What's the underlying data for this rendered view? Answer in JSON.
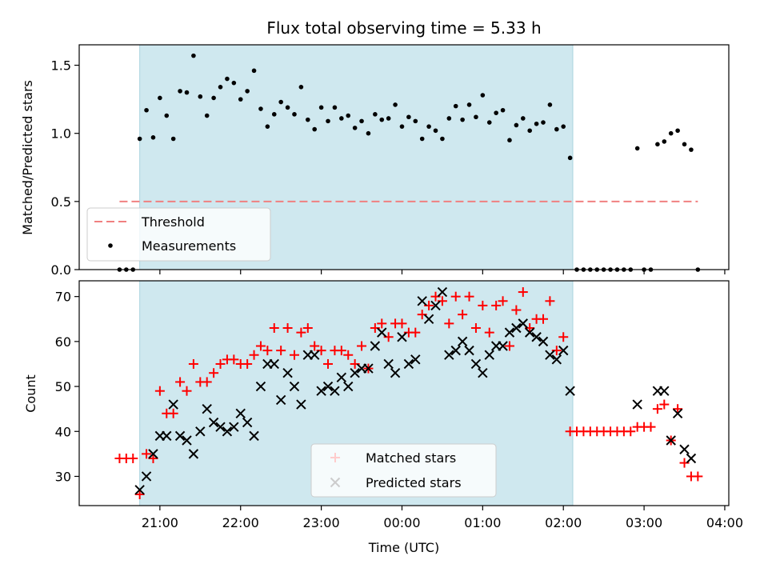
{
  "chart_data": [
    {
      "type": "scatter",
      "title": "Flux total observing time = 5.33 h",
      "xlabel": "",
      "ylabel": "Matched/Predicted stars",
      "ylim": [
        0,
        1.65
      ],
      "yticks": [
        "0.0",
        "0.5",
        "1.0",
        "1.5"
      ],
      "grid": false,
      "legend_position": "lower-left",
      "shaded_interval": [
        "20:45",
        "02:07"
      ],
      "shade_color": "#cfe8ef",
      "threshold": {
        "name": "Threshold",
        "value": 0.5,
        "x_range": [
          "20:30",
          "03:40"
        ],
        "color": "#f08080",
        "style": "dashed"
      },
      "series": [
        {
          "name": "Measurements",
          "marker": "dot",
          "color": "#000000",
          "points": [
            [
              "20:30",
              0
            ],
            [
              "20:35",
              0
            ],
            [
              "20:40",
              0
            ],
            [
              "20:45",
              0.96
            ],
            [
              "20:50",
              1.17
            ],
            [
              "20:55",
              0.97
            ],
            [
              "21:00",
              1.26
            ],
            [
              "21:05",
              1.13
            ],
            [
              "21:10",
              0.96
            ],
            [
              "21:15",
              1.31
            ],
            [
              "21:20",
              1.3
            ],
            [
              "21:25",
              1.57
            ],
            [
              "21:30",
              1.27
            ],
            [
              "21:35",
              1.13
            ],
            [
              "21:40",
              1.26
            ],
            [
              "21:45",
              1.34
            ],
            [
              "21:50",
              1.4
            ],
            [
              "21:55",
              1.37
            ],
            [
              "22:00",
              1.25
            ],
            [
              "22:05",
              1.31
            ],
            [
              "22:10",
              1.46
            ],
            [
              "22:15",
              1.18
            ],
            [
              "22:20",
              1.05
            ],
            [
              "22:25",
              1.14
            ],
            [
              "22:30",
              1.23
            ],
            [
              "22:35",
              1.19
            ],
            [
              "22:40",
              1.14
            ],
            [
              "22:45",
              1.34
            ],
            [
              "22:50",
              1.1
            ],
            [
              "22:55",
              1.03
            ],
            [
              "23:00",
              1.19
            ],
            [
              "23:05",
              1.09
            ],
            [
              "23:10",
              1.19
            ],
            [
              "23:15",
              1.11
            ],
            [
              "23:20",
              1.13
            ],
            [
              "23:25",
              1.04
            ],
            [
              "23:30",
              1.09
            ],
            [
              "23:35",
              1.0
            ],
            [
              "23:40",
              1.14
            ],
            [
              "23:45",
              1.1
            ],
            [
              "23:50",
              1.11
            ],
            [
              "23:55",
              1.21
            ],
            [
              "00:00",
              1.05
            ],
            [
              "00:05",
              1.12
            ],
            [
              "00:10",
              1.09
            ],
            [
              "00:15",
              0.96
            ],
            [
              "00:20",
              1.05
            ],
            [
              "00:25",
              1.02
            ],
            [
              "00:30",
              0.96
            ],
            [
              "00:35",
              1.11
            ],
            [
              "00:40",
              1.2
            ],
            [
              "00:45",
              1.1
            ],
            [
              "00:50",
              1.21
            ],
            [
              "00:55",
              1.12
            ],
            [
              "01:00",
              1.28
            ],
            [
              "01:05",
              1.08
            ],
            [
              "01:10",
              1.15
            ],
            [
              "01:15",
              1.17
            ],
            [
              "01:20",
              0.95
            ],
            [
              "01:25",
              1.06
            ],
            [
              "01:30",
              1.11
            ],
            [
              "01:35",
              1.02
            ],
            [
              "01:40",
              1.07
            ],
            [
              "01:45",
              1.08
            ],
            [
              "01:50",
              1.21
            ],
            [
              "01:55",
              1.03
            ],
            [
              "02:00",
              1.05
            ],
            [
              "02:05",
              0.82
            ],
            [
              "02:10",
              0
            ],
            [
              "02:15",
              0
            ],
            [
              "02:20",
              0
            ],
            [
              "02:25",
              0
            ],
            [
              "02:30",
              0
            ],
            [
              "02:35",
              0
            ],
            [
              "02:40",
              0
            ],
            [
              "02:45",
              0
            ],
            [
              "02:50",
              0
            ],
            [
              "02:55",
              0.89
            ],
            [
              "03:00",
              0
            ],
            [
              "03:05",
              0
            ],
            [
              "03:10",
              0.92
            ],
            [
              "03:15",
              0.94
            ],
            [
              "03:20",
              1.0
            ],
            [
              "03:25",
              1.02
            ],
            [
              "03:30",
              0.92
            ],
            [
              "03:35",
              0.88
            ],
            [
              "03:40",
              0
            ]
          ]
        }
      ]
    },
    {
      "type": "scatter",
      "title": "",
      "xlabel": "Time (UTC)",
      "ylabel": "Count",
      "ylim": [
        23.5,
        73.5
      ],
      "yticks": [
        "30",
        "40",
        "50",
        "60",
        "70"
      ],
      "xlim": [
        "20:00",
        "04:03"
      ],
      "xticks": [
        "21:00",
        "22:00",
        "23:00",
        "00:00",
        "01:00",
        "02:00",
        "03:00",
        "04:00"
      ],
      "grid": false,
      "legend_position": "lower-center",
      "shaded_interval": [
        "20:45",
        "02:07"
      ],
      "shade_color": "#cfe8ef",
      "series": [
        {
          "name": "Matched stars",
          "marker": "plus",
          "color": "#ff0000",
          "points": [
            [
              "20:30",
              34
            ],
            [
              "20:35",
              34
            ],
            [
              "20:40",
              34
            ],
            [
              "20:45",
              26
            ],
            [
              "20:50",
              35
            ],
            [
              "20:55",
              34
            ],
            [
              "21:00",
              49
            ],
            [
              "21:05",
              44
            ],
            [
              "21:10",
              44
            ],
            [
              "21:15",
              51
            ],
            [
              "21:20",
              49
            ],
            [
              "21:25",
              55
            ],
            [
              "21:30",
              51
            ],
            [
              "21:35",
              51
            ],
            [
              "21:40",
              53
            ],
            [
              "21:45",
              55
            ],
            [
              "21:50",
              56
            ],
            [
              "21:55",
              56
            ],
            [
              "22:00",
              55
            ],
            [
              "22:05",
              55
            ],
            [
              "22:10",
              57
            ],
            [
              "22:15",
              59
            ],
            [
              "22:20",
              58
            ],
            [
              "22:25",
              63
            ],
            [
              "22:30",
              58
            ],
            [
              "22:35",
              63
            ],
            [
              "22:40",
              57
            ],
            [
              "22:45",
              62
            ],
            [
              "22:50",
              63
            ],
            [
              "22:55",
              59
            ],
            [
              "23:00",
              58
            ],
            [
              "23:05",
              55
            ],
            [
              "23:10",
              58
            ],
            [
              "23:15",
              58
            ],
            [
              "23:20",
              57
            ],
            [
              "23:25",
              55
            ],
            [
              "23:30",
              59
            ],
            [
              "23:35",
              54
            ],
            [
              "23:40",
              63
            ],
            [
              "23:45",
              64
            ],
            [
              "23:50",
              61
            ],
            [
              "23:55",
              64
            ],
            [
              "00:00",
              64
            ],
            [
              "00:05",
              62
            ],
            [
              "00:10",
              62
            ],
            [
              "00:15",
              66
            ],
            [
              "00:20",
              68
            ],
            [
              "00:25",
              70
            ],
            [
              "00:30",
              69
            ],
            [
              "00:35",
              64
            ],
            [
              "00:40",
              70
            ],
            [
              "00:45",
              66
            ],
            [
              "00:50",
              70
            ],
            [
              "00:55",
              63
            ],
            [
              "01:00",
              68
            ],
            [
              "01:05",
              62
            ],
            [
              "01:10",
              68
            ],
            [
              "01:15",
              69
            ],
            [
              "01:20",
              59
            ],
            [
              "01:25",
              67
            ],
            [
              "01:30",
              71
            ],
            [
              "01:35",
              63
            ],
            [
              "01:40",
              65
            ],
            [
              "01:45",
              65
            ],
            [
              "01:50",
              69
            ],
            [
              "01:55",
              58
            ],
            [
              "02:00",
              61
            ],
            [
              "02:05",
              40
            ],
            [
              "02:10",
              40
            ],
            [
              "02:15",
              40
            ],
            [
              "02:20",
              40
            ],
            [
              "02:25",
              40
            ],
            [
              "02:30",
              40
            ],
            [
              "02:35",
              40
            ],
            [
              "02:40",
              40
            ],
            [
              "02:45",
              40
            ],
            [
              "02:50",
              40
            ],
            [
              "02:55",
              41
            ],
            [
              "03:00",
              41
            ],
            [
              "03:05",
              41
            ],
            [
              "03:10",
              45
            ],
            [
              "03:15",
              46
            ],
            [
              "03:20",
              38
            ],
            [
              "03:25",
              45
            ],
            [
              "03:30",
              33
            ],
            [
              "03:35",
              30
            ],
            [
              "03:40",
              30
            ]
          ]
        },
        {
          "name": "Predicted stars",
          "marker": "x",
          "color": "#000000",
          "points": [
            [
              "20:45",
              27
            ],
            [
              "20:50",
              30
            ],
            [
              "20:55",
              35
            ],
            [
              "21:00",
              39
            ],
            [
              "21:05",
              39
            ],
            [
              "21:10",
              46
            ],
            [
              "21:15",
              39
            ],
            [
              "21:20",
              38
            ],
            [
              "21:25",
              35
            ],
            [
              "21:30",
              40
            ],
            [
              "21:35",
              45
            ],
            [
              "21:40",
              42
            ],
            [
              "21:45",
              41
            ],
            [
              "21:50",
              40
            ],
            [
              "21:55",
              41
            ],
            [
              "22:00",
              44
            ],
            [
              "22:05",
              42
            ],
            [
              "22:10",
              39
            ],
            [
              "22:15",
              50
            ],
            [
              "22:20",
              55
            ],
            [
              "22:25",
              55
            ],
            [
              "22:30",
              47
            ],
            [
              "22:35",
              53
            ],
            [
              "22:40",
              50
            ],
            [
              "22:45",
              46
            ],
            [
              "22:50",
              57
            ],
            [
              "22:55",
              57
            ],
            [
              "23:00",
              49
            ],
            [
              "23:05",
              50
            ],
            [
              "23:10",
              49
            ],
            [
              "23:15",
              52
            ],
            [
              "23:20",
              50
            ],
            [
              "23:25",
              53
            ],
            [
              "23:30",
              54
            ],
            [
              "23:35",
              54
            ],
            [
              "23:40",
              59
            ],
            [
              "23:45",
              62
            ],
            [
              "23:50",
              55
            ],
            [
              "23:55",
              53
            ],
            [
              "00:00",
              61
            ],
            [
              "00:05",
              55
            ],
            [
              "00:10",
              56
            ],
            [
              "00:15",
              69
            ],
            [
              "00:20",
              65
            ],
            [
              "00:25",
              68
            ],
            [
              "00:30",
              71
            ],
            [
              "00:35",
              57
            ],
            [
              "00:40",
              58
            ],
            [
              "00:45",
              60
            ],
            [
              "00:50",
              58
            ],
            [
              "00:55",
              55
            ],
            [
              "01:00",
              53
            ],
            [
              "01:05",
              57
            ],
            [
              "01:10",
              59
            ],
            [
              "01:15",
              59
            ],
            [
              "01:20",
              62
            ],
            [
              "01:25",
              63
            ],
            [
              "01:30",
              64
            ],
            [
              "01:35",
              62
            ],
            [
              "01:40",
              61
            ],
            [
              "01:45",
              60
            ],
            [
              "01:50",
              57
            ],
            [
              "01:55",
              56
            ],
            [
              "02:00",
              58
            ],
            [
              "02:05",
              49
            ],
            [
              "02:55",
              46
            ],
            [
              "03:10",
              49
            ],
            [
              "03:15",
              49
            ],
            [
              "03:20",
              38
            ],
            [
              "03:25",
              44
            ],
            [
              "03:30",
              36
            ],
            [
              "03:35",
              34
            ]
          ]
        }
      ]
    }
  ]
}
